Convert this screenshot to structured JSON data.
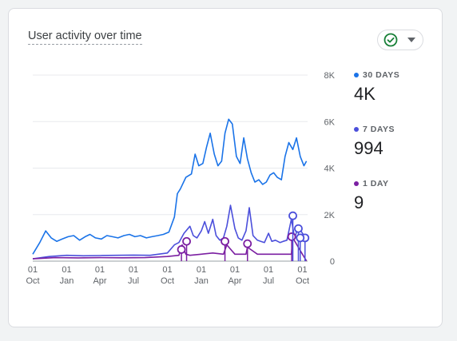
{
  "card": {
    "title": "User activity over time"
  },
  "legend": [
    {
      "label": "30 DAYS",
      "value": "4K",
      "color": "#1a73e8"
    },
    {
      "label": "7 DAYS",
      "value": "994",
      "color": "#4b4fdb"
    },
    {
      "label": "1 DAY",
      "value": "9",
      "color": "#7b1fa2"
    }
  ],
  "icons": {
    "compare": "check-circle-icon",
    "dropdown": "chevron-down-icon"
  },
  "chart_data": {
    "type": "line",
    "title": "User activity over time",
    "xlabel": "",
    "ylabel": "",
    "ylim": [
      0,
      8000
    ],
    "y_ticks": [
      0,
      2000,
      4000,
      6000,
      8000
    ],
    "y_tick_labels": [
      "0",
      "2K",
      "4K",
      "6K",
      "8K"
    ],
    "y_axis_position": "right",
    "grid": true,
    "legend_position": "right",
    "x_ticks": [
      {
        "date": "2022-10-01",
        "day": "01",
        "month": "Oct"
      },
      {
        "date": "2023-01-01",
        "day": "01",
        "month": "Jan"
      },
      {
        "date": "2023-04-01",
        "day": "01",
        "month": "Apr"
      },
      {
        "date": "2023-07-01",
        "day": "01",
        "month": "Jul"
      },
      {
        "date": "2023-10-01",
        "day": "01",
        "month": "Oct"
      },
      {
        "date": "2024-01-01",
        "day": "01",
        "month": "Jan"
      },
      {
        "date": "2024-04-01",
        "day": "01",
        "month": "Apr"
      },
      {
        "date": "2024-07-01",
        "day": "01",
        "month": "Jul"
      },
      {
        "date": "2024-10-01",
        "day": "01",
        "month": "Oct"
      }
    ],
    "xlim": [
      "2022-10-01",
      "2024-10-15"
    ],
    "series": [
      {
        "name": "30 DAYS",
        "color": "#1a73e8",
        "x": [
          "2022-10-01",
          "2022-10-20",
          "2022-11-05",
          "2022-11-20",
          "2022-12-05",
          "2022-12-20",
          "2023-01-05",
          "2023-01-20",
          "2023-02-05",
          "2023-02-20",
          "2023-03-05",
          "2023-03-20",
          "2023-04-05",
          "2023-04-20",
          "2023-05-05",
          "2023-05-20",
          "2023-06-05",
          "2023-06-20",
          "2023-07-05",
          "2023-07-20",
          "2023-08-05",
          "2023-08-20",
          "2023-09-05",
          "2023-09-20",
          "2023-10-05",
          "2023-10-20",
          "2023-10-28",
          "2023-11-05",
          "2023-11-20",
          "2023-12-05",
          "2023-12-15",
          "2023-12-25",
          "2024-01-05",
          "2024-01-15",
          "2024-01-25",
          "2024-02-05",
          "2024-02-15",
          "2024-02-25",
          "2024-03-05",
          "2024-03-15",
          "2024-03-25",
          "2024-04-05",
          "2024-04-15",
          "2024-04-25",
          "2024-05-05",
          "2024-05-15",
          "2024-05-25",
          "2024-06-05",
          "2024-06-15",
          "2024-06-25",
          "2024-07-05",
          "2024-07-15",
          "2024-07-25",
          "2024-08-05",
          "2024-08-15",
          "2024-08-25",
          "2024-09-05",
          "2024-09-15",
          "2024-09-25",
          "2024-10-05",
          "2024-10-12"
        ],
        "values": [
          300,
          800,
          1300,
          1000,
          850,
          950,
          1050,
          1100,
          900,
          1050,
          1150,
          1000,
          950,
          1100,
          1050,
          1000,
          1100,
          1150,
          1050,
          1100,
          1000,
          1050,
          1100,
          1150,
          1250,
          1900,
          2900,
          3100,
          3600,
          3750,
          4600,
          4100,
          4200,
          4900,
          5500,
          4600,
          4100,
          4300,
          5500,
          6100,
          5900,
          4500,
          4200,
          5300,
          4400,
          3800,
          3400,
          3500,
          3300,
          3400,
          3700,
          3800,
          3600,
          3500,
          4500,
          5100,
          4800,
          5300,
          4500,
          4100,
          4300
        ]
      },
      {
        "name": "7 DAYS",
        "color": "#4b4fdb",
        "x": [
          "2022-10-01",
          "2022-11-15",
          "2023-01-01",
          "2023-02-15",
          "2023-04-01",
          "2023-05-15",
          "2023-07-01",
          "2023-08-15",
          "2023-10-01",
          "2023-10-20",
          "2023-11-01",
          "2023-11-15",
          "2023-12-01",
          "2023-12-10",
          "2023-12-20",
          "2024-01-01",
          "2024-01-10",
          "2024-01-20",
          "2024-02-01",
          "2024-02-10",
          "2024-02-20",
          "2024-03-01",
          "2024-03-10",
          "2024-03-20",
          "2024-04-01",
          "2024-04-10",
          "2024-04-20",
          "2024-05-01",
          "2024-05-10",
          "2024-05-20",
          "2024-06-01",
          "2024-06-10",
          "2024-06-20",
          "2024-07-01",
          "2024-07-10",
          "2024-07-20",
          "2024-08-01",
          "2024-08-10",
          "2024-08-20",
          "2024-09-01",
          "2024-09-10",
          "2024-09-20",
          "2024-10-01",
          "2024-10-12"
        ],
        "values": [
          100,
          200,
          250,
          230,
          240,
          250,
          260,
          250,
          350,
          700,
          800,
          1200,
          1500,
          1100,
          1000,
          1300,
          1700,
          1200,
          1800,
          1100,
          900,
          1000,
          1500,
          2400,
          1400,
          1000,
          900,
          1300,
          2300,
          1100,
          900,
          850,
          800,
          1200,
          850,
          900,
          800,
          850,
          900,
          1800,
          1000,
          1500,
          1200,
          994
        ]
      },
      {
        "name": "1 DAY",
        "color": "#7b1fa2",
        "x": [
          "2022-10-01",
          "2022-12-01",
          "2023-02-01",
          "2023-04-01",
          "2023-06-01",
          "2023-08-01",
          "2023-10-01",
          "2023-11-01",
          "2023-11-10",
          "2023-11-20",
          "2023-12-01",
          "2024-01-01",
          "2024-02-01",
          "2024-03-01",
          "2024-03-10",
          "2024-04-01",
          "2024-05-01",
          "2024-05-05",
          "2024-06-01",
          "2024-07-01",
          "2024-08-01",
          "2024-09-01",
          "2024-09-05",
          "2024-10-01",
          "2024-10-12"
        ],
        "values": [
          100,
          150,
          140,
          150,
          145,
          150,
          200,
          250,
          700,
          300,
          250,
          300,
          350,
          300,
          700,
          300,
          300,
          600,
          300,
          300,
          300,
          300,
          1000,
          300,
          9
        ]
      }
    ],
    "annotations": [
      {
        "series": "1 DAY",
        "x": "2023-11-08",
        "y": 500
      },
      {
        "series": "1 DAY",
        "x": "2023-11-22",
        "y": 850
      },
      {
        "series": "1 DAY",
        "x": "2024-03-05",
        "y": 850
      },
      {
        "series": "1 DAY",
        "x": "2024-05-05",
        "y": 750
      },
      {
        "series": "1 DAY",
        "x": "2024-09-02",
        "y": 1050
      },
      {
        "series": "7 DAYS",
        "x": "2024-09-05",
        "y": 1950
      },
      {
        "series": "7 DAYS",
        "x": "2024-09-20",
        "y": 1400
      },
      {
        "series": "7 DAYS",
        "x": "2024-10-08",
        "y": 1000
      },
      {
        "series": "7 DAYS",
        "x": "2024-09-25",
        "y": 1000
      }
    ]
  }
}
